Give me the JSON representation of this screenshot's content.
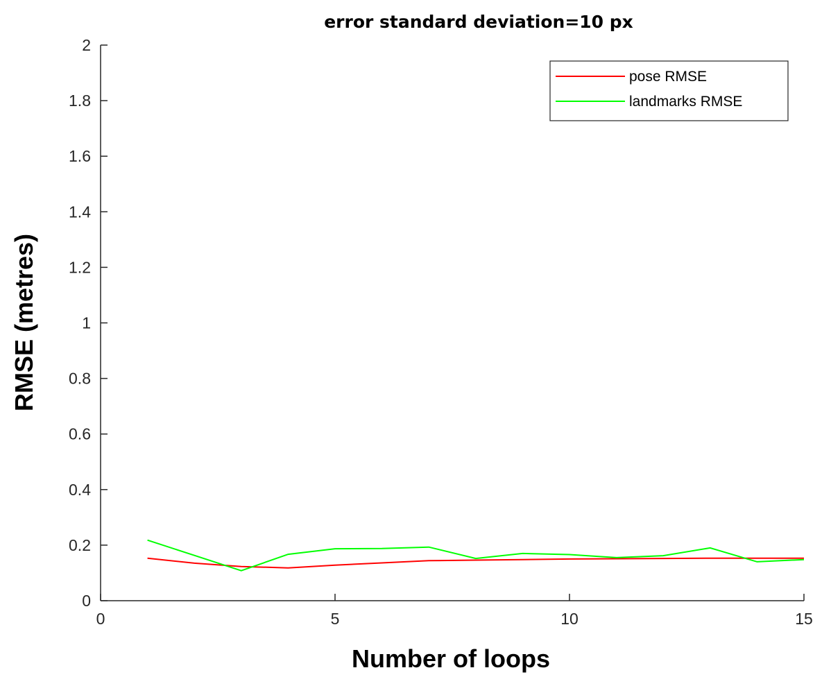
{
  "chart_data": {
    "type": "line",
    "title": "error standard deviation=10 px",
    "xlabel": "Number of loops",
    "ylabel": "RMSE (metres)",
    "xlim": [
      0,
      15
    ],
    "ylim": [
      0,
      2
    ],
    "xticks": [
      0,
      5,
      10,
      15
    ],
    "xtick_labels": [
      "0",
      "5",
      "10",
      "15"
    ],
    "yticks": [
      0,
      0.2,
      0.4,
      0.6,
      0.8,
      1,
      1.2,
      1.4,
      1.6,
      1.8,
      2
    ],
    "ytick_labels": [
      "0",
      "0.2",
      "0.4",
      "0.6",
      "0.8",
      "1",
      "1.2",
      "1.4",
      "1.6",
      "1.8",
      "2"
    ],
    "grid": false,
    "legend_position": "top-right",
    "x": [
      1,
      2,
      3,
      4,
      5,
      6,
      7,
      8,
      9,
      10,
      11,
      12,
      13,
      14,
      15
    ],
    "series": [
      {
        "name": "pose RMSE",
        "color": "#ff0000",
        "values": [
          0.153,
          0.135,
          0.123,
          0.118,
          0.128,
          0.136,
          0.144,
          0.146,
          0.148,
          0.15,
          0.151,
          0.152,
          0.153,
          0.153,
          0.153
        ]
      },
      {
        "name": "landmarks RMSE",
        "color": "#00ff00",
        "values": [
          0.218,
          0.163,
          0.108,
          0.167,
          0.187,
          0.188,
          0.193,
          0.152,
          0.17,
          0.166,
          0.155,
          0.162,
          0.19,
          0.14,
          0.148
        ]
      }
    ]
  }
}
